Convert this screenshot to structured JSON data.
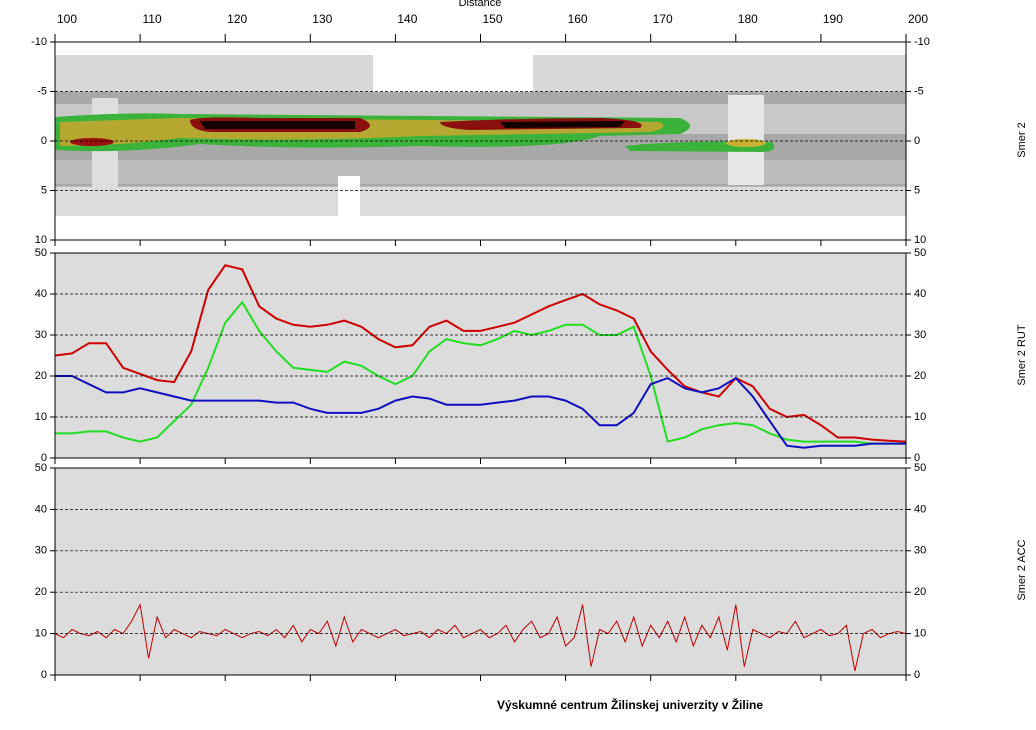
{
  "chart_data": [
    {
      "type": "heatmap",
      "title": "Distance",
      "ylabel": "Smer 2",
      "xlim": [
        100,
        200
      ],
      "xticks": [
        100,
        110,
        120,
        130,
        140,
        150,
        160,
        170,
        180,
        190,
        200
      ],
      "ylim": [
        10,
        -10
      ],
      "yticks": [
        -10,
        -5,
        0,
        5,
        10
      ],
      "grid": true
    },
    {
      "type": "line",
      "ylabel": "Smer 2 RUT",
      "ylim": [
        0,
        50
      ],
      "yticks": [
        0,
        10,
        20,
        30,
        40,
        50
      ],
      "grid": true,
      "x": [
        100,
        102,
        104,
        106,
        108,
        110,
        112,
        114,
        116,
        118,
        120,
        122,
        124,
        126,
        128,
        130,
        132,
        134,
        136,
        138,
        140,
        142,
        144,
        146,
        148,
        150,
        152,
        154,
        156,
        158,
        160,
        162,
        164,
        166,
        168,
        170,
        172,
        174,
        176,
        178,
        180,
        182,
        184,
        186,
        188,
        190,
        192,
        194,
        196,
        198,
        200
      ],
      "series": [
        {
          "color": "#d00000",
          "values": [
            25,
            25.5,
            28,
            28,
            22,
            20.5,
            19,
            18.5,
            26,
            41,
            47,
            46,
            37,
            34,
            32.5,
            32,
            32.5,
            33.5,
            32,
            29,
            27,
            27.5,
            32,
            33.5,
            31,
            31,
            32,
            33,
            35,
            37,
            38.5,
            40,
            37.5,
            36,
            34,
            26,
            21.5,
            17.5,
            16,
            15,
            19.5,
            17.5,
            12,
            10,
            10.5,
            8,
            5,
            5,
            4.5,
            4.2,
            4
          ]
        },
        {
          "color": "#22dd22",
          "values": [
            6,
            6,
            6.5,
            6.5,
            5,
            4,
            5,
            9,
            13,
            22,
            33,
            38,
            31,
            26,
            22,
            21.5,
            21,
            23.5,
            22.5,
            20,
            18,
            20,
            26,
            29,
            28,
            27.5,
            29,
            31,
            30,
            31,
            32.5,
            32.5,
            30,
            30,
            32,
            20,
            4,
            5,
            7,
            8,
            8.5,
            8,
            6,
            4.5,
            4,
            4,
            4,
            4,
            3.5,
            3.5,
            3.5
          ]
        },
        {
          "color": "#1010c0",
          "values": [
            20,
            20,
            18,
            16,
            16,
            17,
            16,
            15,
            14,
            14,
            14,
            14,
            14,
            13.5,
            13.5,
            12,
            11,
            11,
            11,
            12,
            14,
            15,
            14.5,
            13,
            13,
            13,
            13.5,
            14,
            15,
            15,
            14,
            12,
            8,
            8,
            11,
            18,
            19.5,
            17,
            16,
            17,
            19.5,
            15,
            9,
            3,
            2.5,
            3,
            3,
            3,
            3.5,
            3.5,
            3.5
          ]
        }
      ]
    },
    {
      "type": "line",
      "ylabel": "Smer 2 ACC",
      "ylim": [
        0,
        50
      ],
      "yticks": [
        0,
        10,
        20,
        30,
        40,
        50
      ],
      "grid": true,
      "x": [
        100,
        101,
        102,
        103,
        104,
        105,
        106,
        107,
        108,
        109,
        110,
        111,
        112,
        113,
        114,
        115,
        116,
        117,
        118,
        119,
        120,
        121,
        122,
        123,
        124,
        125,
        126,
        127,
        128,
        129,
        130,
        131,
        132,
        133,
        134,
        135,
        136,
        137,
        138,
        139,
        140,
        141,
        142,
        143,
        144,
        145,
        146,
        147,
        148,
        149,
        150,
        151,
        152,
        153,
        154,
        155,
        156,
        157,
        158,
        159,
        160,
        161,
        162,
        163,
        164,
        165,
        166,
        167,
        168,
        169,
        170,
        171,
        172,
        173,
        174,
        175,
        176,
        177,
        178,
        179,
        180,
        181,
        182,
        183,
        184,
        185,
        186,
        187,
        188,
        189,
        190,
        191,
        192,
        193,
        194,
        195,
        196,
        197,
        198,
        199,
        200
      ],
      "series": [
        {
          "color": "#c00000",
          "values": [
            10,
            9,
            11,
            10,
            9.5,
            10.5,
            9,
            11,
            10,
            13,
            17,
            4,
            14,
            9,
            11,
            10,
            9,
            10.5,
            10,
            9.5,
            11,
            10,
            9,
            10,
            10.5,
            9.5,
            11,
            9,
            12,
            8,
            11,
            10,
            13,
            7,
            14,
            8,
            11,
            10,
            9,
            10,
            11,
            9.5,
            10,
            10.5,
            9,
            11,
            10,
            12,
            9,
            10,
            11,
            9,
            10,
            12,
            8,
            11,
            13,
            9,
            10,
            14,
            7,
            9,
            17,
            2,
            11,
            10,
            13,
            8,
            14,
            7,
            12,
            9,
            13,
            8,
            14,
            7,
            12,
            9,
            14,
            6,
            17,
            2,
            11,
            10,
            9,
            10.5,
            10,
            13,
            9,
            10,
            11,
            9.5,
            10,
            12,
            1,
            10,
            11,
            9,
            10,
            10.5,
            10
          ]
        }
      ]
    }
  ],
  "footer": "Výskumné centrum Žilinskej univerzity v Žiline"
}
